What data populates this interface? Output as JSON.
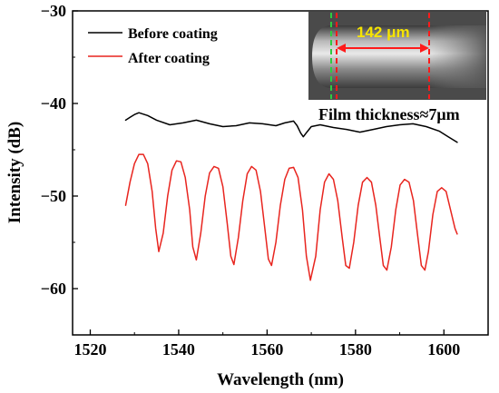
{
  "chart_data": {
    "type": "line",
    "xlabel": "Wavelength (nm)",
    "ylabel": "Intensity (dB)",
    "xlim": [
      1516,
      1610
    ],
    "ylim": [
      -65,
      -30
    ],
    "xticks": [
      1520,
      1540,
      1560,
      1580,
      1600
    ],
    "yticks": [
      -60,
      -50,
      -40,
      -30
    ],
    "tick_labels_x": [
      "1520",
      "1540",
      "1560",
      "1580",
      "1600"
    ],
    "tick_labels_y": [
      "−60",
      "−50",
      "−40",
      "−30"
    ],
    "legend_position": "top-left",
    "series": [
      {
        "name": "Before coating",
        "color": "#000000",
        "x": [
          1528,
          1529,
          1530,
          1531,
          1533,
          1535,
          1538,
          1541,
          1544,
          1547,
          1550,
          1553,
          1556,
          1559,
          1562,
          1564,
          1566,
          1566.8,
          1567.6,
          1568.2,
          1569,
          1570,
          1572,
          1575,
          1578,
          1581,
          1584,
          1587,
          1590,
          1593,
          1596,
          1599,
          1601,
          1603
        ],
        "values": [
          -41.8,
          -41.5,
          -41.2,
          -41.0,
          -41.3,
          -41.8,
          -42.3,
          -42.1,
          -41.8,
          -42.2,
          -42.5,
          -42.4,
          -42.1,
          -42.2,
          -42.4,
          -42.1,
          -41.9,
          -42.4,
          -43.2,
          -43.6,
          -43.1,
          -42.5,
          -42.3,
          -42.6,
          -42.8,
          -43.1,
          -42.8,
          -42.5,
          -42.3,
          -42.2,
          -42.5,
          -43.0,
          -43.6,
          -44.2
        ]
      },
      {
        "name": "After coating",
        "color": "#e8251f",
        "x": [
          1528,
          1529,
          1530,
          1531,
          1532,
          1533,
          1534,
          1534.8,
          1535.5,
          1536.5,
          1537.5,
          1538.5,
          1539.5,
          1540.5,
          1541.5,
          1542.5,
          1543.2,
          1544,
          1545,
          1546,
          1547,
          1548,
          1549,
          1550,
          1551,
          1551.8,
          1552.5,
          1553.5,
          1554.5,
          1555.5,
          1556.5,
          1557.5,
          1558.5,
          1559.5,
          1560.3,
          1561,
          1562,
          1563,
          1564,
          1565,
          1566,
          1567,
          1568,
          1568.9,
          1569.8,
          1571,
          1572,
          1573,
          1574,
          1575,
          1576,
          1577,
          1577.8,
          1578.6,
          1579.6,
          1580.6,
          1581.6,
          1582.6,
          1583.6,
          1584.6,
          1585.5,
          1586.3,
          1587.1,
          1588.1,
          1589.1,
          1590.1,
          1591.1,
          1592.1,
          1593.1,
          1594,
          1594.9,
          1595.7,
          1596.5,
          1597.5,
          1598.5,
          1599.5,
          1600.5,
          1601.5,
          1602.5,
          1603
        ],
        "values": [
          -51,
          -48.5,
          -46.5,
          -45.5,
          -45.5,
          -46.5,
          -49.5,
          -53.5,
          -56.0,
          -54,
          -50,
          -47.2,
          -46.2,
          -46.3,
          -48,
          -51.5,
          -55.5,
          -56.9,
          -54,
          -50,
          -47.5,
          -46.8,
          -47,
          -49,
          -53,
          -56.5,
          -57.4,
          -54.5,
          -50.5,
          -47.6,
          -46.8,
          -47.2,
          -49.5,
          -53.5,
          -56.8,
          -57.5,
          -55,
          -51,
          -48.2,
          -47.0,
          -46.9,
          -48.0,
          -51.5,
          -56.5,
          -59.1,
          -56.5,
          -51.5,
          -48.5,
          -47.6,
          -48.2,
          -50.5,
          -54.5,
          -57.5,
          -57.8,
          -55,
          -51,
          -48.5,
          -48.0,
          -48.5,
          -51,
          -54.5,
          -57.5,
          -58.0,
          -55.5,
          -51.5,
          -48.8,
          -48.2,
          -48.5,
          -50.5,
          -54,
          -57.5,
          -58.0,
          -56,
          -52,
          -49.5,
          -49.1,
          -49.5,
          -51.5,
          -53.5,
          -54.1
        ]
      }
    ],
    "inset": {
      "measurement": "142 μm",
      "caption": "Film thickness≈7μm"
    }
  }
}
